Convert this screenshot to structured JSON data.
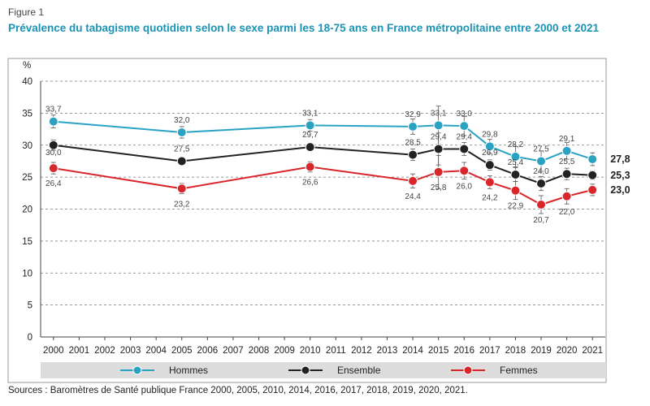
{
  "figure_label": "Figure 1",
  "sources": "Sources : Baromètres de Santé publique France 2000, 2005, 2010, 2014, 2016, 2017, 2018, 2019, 2020, 2021.",
  "colors": {
    "hommes": "#2aa3c3",
    "ensemble": "#222222",
    "femmes": "#d9262b",
    "grid": "#777777",
    "legend_bg": "#dcdcdc",
    "title": "#1a93b5"
  },
  "chart_data": {
    "type": "line",
    "title": "Prévalence du tabagisme quotidien selon le sexe parmi les 18-75 ans en France métropolitaine entre 2000 et 2021",
    "ylabel": "%",
    "ylim": [
      0,
      40
    ],
    "yticks": [
      0,
      5,
      10,
      15,
      20,
      25,
      30,
      35,
      40
    ],
    "x_categories": [
      "2000",
      "2001",
      "2002",
      "2003",
      "2004",
      "2005",
      "2006",
      "2007",
      "2008",
      "2009",
      "2010",
      "2011",
      "2012",
      "2013",
      "2014",
      "2015",
      "2016",
      "2017",
      "2018",
      "2019",
      "2020",
      "2021"
    ],
    "grid": "horizontal dashed",
    "legend_position": "bottom",
    "series": [
      {
        "key": "hommes",
        "name": "Hommes",
        "x": [
          2000,
          2005,
          2010,
          2014,
          2015,
          2016,
          2017,
          2018,
          2019,
          2020,
          2021
        ],
        "values": [
          33.7,
          32.0,
          33.1,
          32.9,
          33.1,
          33.0,
          29.8,
          28.2,
          27.5,
          29.1,
          27.8
        ],
        "labels": [
          "33,7",
          "32,0",
          "33,1",
          "32,9",
          "33,1",
          "33,0",
          "29,8",
          "28,2",
          "27,5",
          "29,1",
          ""
        ],
        "end_label": "27,8",
        "errors": [
          1.0,
          0.9,
          0.9,
          1.2,
          3.0,
          1.5,
          1.1,
          1.6,
          1.6,
          1.3,
          1.0
        ]
      },
      {
        "key": "ensemble",
        "name": "Ensemble",
        "x": [
          2000,
          2005,
          2010,
          2014,
          2015,
          2016,
          2017,
          2018,
          2019,
          2020,
          2021
        ],
        "values": [
          30.0,
          27.5,
          29.7,
          28.5,
          29.4,
          29.4,
          26.9,
          25.4,
          24.0,
          25.5,
          25.3
        ],
        "labels": [
          "30,0",
          "27,5",
          "29,7",
          "28,5",
          "29,4",
          "29,4",
          "26,9",
          "25,4",
          "24,0",
          "25,5",
          ""
        ],
        "end_label": "25,3",
        "errors": [
          0.8,
          0.6,
          0.6,
          0.9,
          2.5,
          1.0,
          0.8,
          1.1,
          1.1,
          0.9,
          0.7
        ]
      },
      {
        "key": "femmes",
        "name": "Femmes",
        "x": [
          2000,
          2005,
          2010,
          2014,
          2015,
          2016,
          2017,
          2018,
          2019,
          2020,
          2021
        ],
        "values": [
          26.4,
          23.2,
          26.6,
          24.4,
          25.8,
          26.0,
          24.2,
          22.9,
          20.7,
          22.0,
          23.0
        ],
        "labels": [
          "26,4",
          "23,2",
          "26,6",
          "24,4",
          "25,8",
          "26,0",
          "24,2",
          "22,9",
          "20,7",
          "22,0",
          ""
        ],
        "end_label": "23,0",
        "errors": [
          0.9,
          0.8,
          0.8,
          1.1,
          2.6,
          1.3,
          1.0,
          1.4,
          1.4,
          1.2,
          0.9
        ]
      }
    ]
  }
}
